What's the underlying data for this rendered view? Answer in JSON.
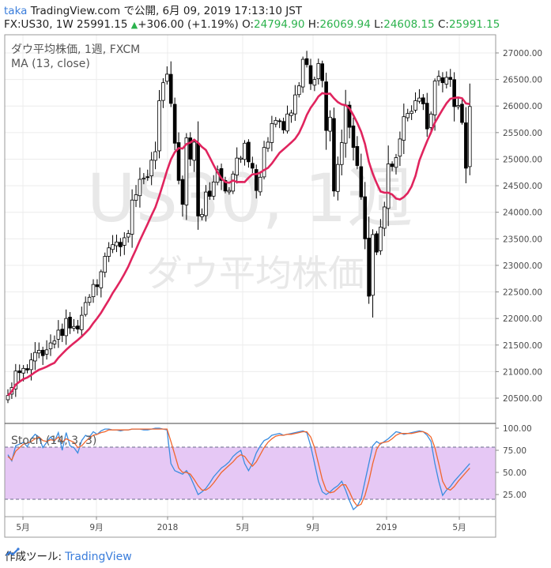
{
  "header": {
    "user": "taka",
    "line1": "TradingView.com で公開, 6月 09, 2019 17:13:10 JST",
    "symbol": "FX:US30, 1W",
    "last": "25991.15",
    "change": "+306.00 (+1.19%)",
    "o_label": "O:",
    "o_value": "24794.90",
    "h_label": "H:",
    "h_value": "26069.94",
    "l_label": "L:",
    "l_value": "24608.15",
    "c_label": "C:",
    "c_value": "25991.15"
  },
  "legend": {
    "title": "ダウ平均株価, 1週, FXCM",
    "ma": "MA (13, close)",
    "stoch": "Stoch (14, 3, 3)"
  },
  "watermark": {
    "symbol": "US30, 1週",
    "name": "ダウ平均株価"
  },
  "footer": {
    "label": "作成ツール:",
    "brand": "TradingView"
  },
  "colors": {
    "up": "#ffffff",
    "down": "#000000",
    "ma": "#e0245e",
    "k": "#3b8de0",
    "d": "#f0662e",
    "band": "#e6c8f5"
  },
  "chart_data": {
    "type": "candlestick",
    "timeframe": "1W",
    "x_ticks": [
      "5月",
      "9月",
      "2018",
      "5月",
      "9月",
      "2019",
      "5月"
    ],
    "price_axis": {
      "ticks": [
        20500,
        21000,
        21500,
        22000,
        22500,
        23000,
        23500,
        24000,
        24500,
        25000,
        25500,
        26000,
        26500,
        27000
      ],
      "labels": [
        "20500.00",
        "21000.00",
        "21500.00",
        "22000.00",
        "22500.00",
        "23000.00",
        "23500.00",
        "24000.00",
        "24500.00",
        "25000.00",
        "25500.00",
        "26000.00",
        "26500.00",
        "27000.00"
      ],
      "ylim": [
        20250,
        27200
      ]
    },
    "stoch_axis": {
      "ticks": [
        25,
        50,
        75,
        100
      ],
      "labels": [
        "25.00",
        "50.00",
        "75.00",
        "100.00"
      ],
      "band": [
        20,
        80
      ],
      "ylim": [
        2,
        102
      ]
    },
    "series": [
      {
        "name": "ダウ平均株価",
        "type": "candlestick",
        "close": [
          20550,
          20700,
          21010,
          20980,
          21060,
          21030,
          21220,
          21360,
          21400,
          21300,
          21410,
          21540,
          21580,
          21780,
          21680,
          22000,
          21820,
          21850,
          21800,
          22060,
          22300,
          22400,
          22640,
          22600,
          22880,
          23170,
          23330,
          23390,
          23440,
          23350,
          23520,
          23600,
          24230,
          24330,
          24620,
          24640,
          24660,
          24980,
          25140,
          26100,
          26440,
          26600,
          26050,
          25300,
          24600,
          24150,
          25400,
          25000,
          25320,
          23930,
          23960,
          24380,
          24300,
          24570,
          24800,
          24600,
          24400,
          24410,
          24720,
          25020,
          25020,
          25300,
          24950,
          24830,
          24410,
          24660,
          25220,
          25320,
          25670,
          25730,
          25710,
          25550,
          25850,
          25870,
          26210,
          26380,
          26880,
          26780,
          26420,
          26500,
          26800,
          26480,
          25540,
          25790,
          24400,
          24900,
          25310,
          26020,
          25600,
          25220,
          24880,
          24290,
          23500,
          22420,
          23580,
          23250,
          23720,
          24100,
          24910,
          24860,
          25030,
          25380,
          25800,
          25860,
          25900,
          26100,
          26150,
          26040,
          25570,
          25850,
          26470,
          26560,
          26440,
          26540,
          26500,
          25990,
          26010,
          25690,
          24830,
          25991.15
        ],
        "source": "estimated from pixels"
      },
      {
        "name": "MA (13, close)",
        "type": "line",
        "source": "13-week SMA of close (computed)"
      },
      {
        "name": "Stoch %K",
        "type": "line",
        "values": [
          70,
          63,
          80,
          82,
          84,
          79,
          88,
          93,
          90,
          78,
          84,
          90,
          85,
          95,
          75,
          95,
          80,
          78,
          72,
          86,
          92,
          90,
          96,
          93,
          97,
          99,
          99,
          98,
          98,
          97,
          98,
          98,
          99,
          99,
          99,
          98,
          98,
          99,
          100,
          100,
          99,
          98,
          60,
          52,
          50,
          48,
          52,
          45,
          35,
          25,
          28,
          32,
          38,
          45,
          50,
          55,
          58,
          62,
          68,
          72,
          75,
          60,
          52,
          60,
          72,
          80,
          86,
          88,
          92,
          93,
          94,
          92,
          93,
          94,
          95,
          96,
          97,
          95,
          80,
          60,
          40,
          28,
          25,
          28,
          32,
          35,
          40,
          30,
          18,
          8,
          12,
          20,
          40,
          60,
          80,
          85,
          82,
          85,
          88,
          92,
          96,
          95,
          93,
          94,
          95,
          96,
          97,
          96,
          92,
          85,
          60,
          40,
          24,
          30,
          34,
          40,
          45,
          50,
          55,
          60
        ],
        "source": "estimated from pixels"
      },
      {
        "name": "Stoch %D",
        "type": "line",
        "values": [
          68,
          64,
          74,
          78,
          82,
          83,
          85,
          88,
          90,
          86,
          85,
          87,
          86,
          90,
          84,
          88,
          86,
          84,
          78,
          80,
          85,
          89,
          92,
          93,
          95,
          96,
          98,
          98,
          98,
          98,
          98,
          98,
          99,
          99,
          99,
          99,
          99,
          99,
          99,
          99,
          99,
          99,
          85,
          70,
          55,
          50,
          50,
          48,
          42,
          35,
          30,
          30,
          33,
          38,
          44,
          50,
          54,
          58,
          62,
          67,
          70,
          68,
          62,
          57,
          62,
          70,
          78,
          84,
          88,
          91,
          92,
          92,
          93,
          93,
          94,
          95,
          96,
          96,
          90,
          78,
          60,
          42,
          30,
          27,
          28,
          32,
          36,
          36,
          28,
          18,
          12,
          14,
          24,
          40,
          60,
          76,
          83,
          84,
          85,
          88,
          92,
          94,
          94,
          94,
          94,
          95,
          96,
          96,
          94,
          90,
          78,
          60,
          40,
          32,
          30,
          34,
          40,
          45,
          50,
          55
        ],
        "source": "estimated from pixels"
      }
    ]
  }
}
